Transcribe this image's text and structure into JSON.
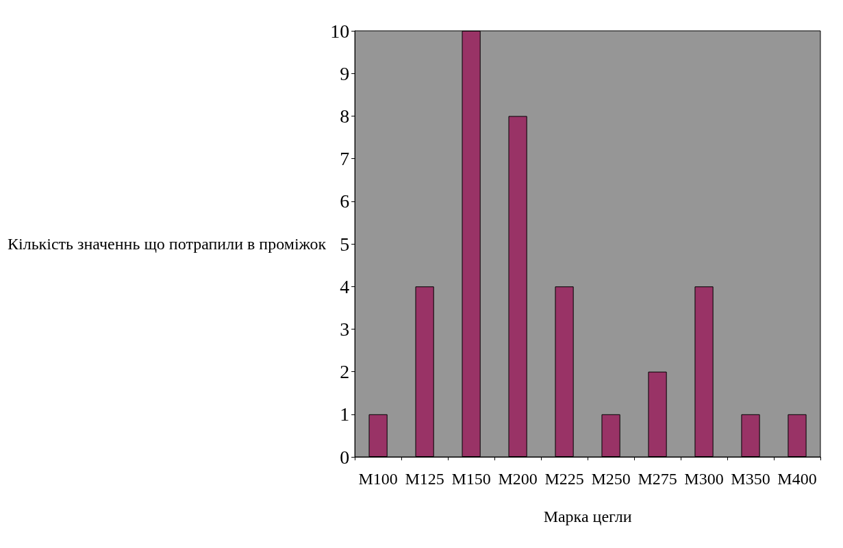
{
  "chart_data": {
    "type": "bar",
    "xlabel": "Марка цегли",
    "ylabel": "Кількість значеннь що потрапили в проміжок",
    "categories": [
      "M100",
      "M125",
      "M150",
      "M200",
      "M225",
      "M250",
      "M275",
      "M300",
      "M350",
      "M400"
    ],
    "values": [
      1,
      4,
      10,
      8,
      4,
      1,
      2,
      4,
      1,
      1
    ],
    "color": "#993366",
    "ylim": [
      0,
      10
    ],
    "yticks": [
      0,
      1,
      2,
      3,
      4,
      5,
      6,
      7,
      8,
      9,
      10
    ],
    "grid": false
  }
}
